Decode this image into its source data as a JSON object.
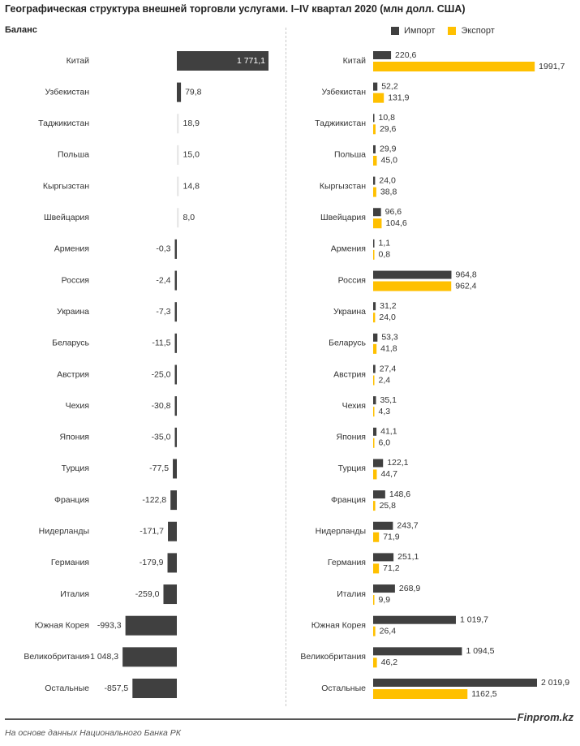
{
  "header": {
    "title": "Географическая структура внешней торговли услугами. I–IV квартал 2020  (млн долл. США)",
    "balance_label": "Баланс"
  },
  "legend": {
    "import_label": "Импорт",
    "export_label": "Экспорт"
  },
  "colors": {
    "import": "#404040",
    "export": "#FFC000",
    "balance": "#404040",
    "balance_small": "#e8e8e8"
  },
  "footer": {
    "source": "На основе данных  Национального  Банка РК",
    "brand": "Finprom.kz"
  },
  "chart_data": [
    {
      "type": "bar",
      "orientation": "horizontal",
      "title": "Баланс",
      "categories": [
        "Китай",
        "Узбекистан",
        "Таджикистан",
        "Польша",
        "Кыргызстан",
        "Швейцария",
        "Армения",
        "Россия",
        "Украина",
        "Беларусь",
        "Австрия",
        "Чехия",
        "Япония",
        "Турция",
        "Франция",
        "Нидерланды",
        "Германия",
        "Италия",
        "Южная Корея",
        "Великобритания",
        "Остальные"
      ],
      "values": [
        1771.1,
        79.8,
        18.9,
        15.0,
        14.8,
        8.0,
        -0.3,
        -2.4,
        -7.3,
        -11.5,
        -25.0,
        -30.8,
        -35.0,
        -77.5,
        -122.8,
        -171.7,
        -179.9,
        -259.0,
        -993.3,
        -1048.3,
        -857.5
      ],
      "labels": [
        "1 771,1",
        "79,8",
        "18,9",
        "15,0",
        "14,8",
        "8,0",
        "-0,3",
        "-2,4",
        "-7,3",
        "-11,5",
        "-25,0",
        "-30,8",
        "-35,0",
        "-77,5",
        "-122,8",
        "-171,7",
        "-179,9",
        "-259,0",
        "-993,3",
        "-1 048,3",
        "-857,5"
      ]
    },
    {
      "type": "bar",
      "orientation": "horizontal",
      "categories": [
        "Китай",
        "Узбекистан",
        "Таджикистан",
        "Польша",
        "Кыргызстан",
        "Швейцария",
        "Армения",
        "Россия",
        "Украина",
        "Беларусь",
        "Австрия",
        "Чехия",
        "Япония",
        "Турция",
        "Франция",
        "Нидерланды",
        "Германия",
        "Италия",
        "Южная Корея",
        "Великобритания",
        "Остальные"
      ],
      "series": [
        {
          "name": "Импорт",
          "values": [
            220.6,
            52.2,
            10.8,
            29.9,
            24.0,
            96.6,
            1.1,
            964.8,
            31.2,
            53.3,
            27.4,
            35.1,
            41.1,
            122.1,
            148.6,
            243.7,
            251.1,
            268.9,
            1019.7,
            1094.5,
            2019.9
          ],
          "labels": [
            "220,6",
            "52,2",
            "10,8",
            "29,9",
            "24,0",
            "96,6",
            "1,1",
            "964,8",
            "31,2",
            "53,3",
            "27,4",
            "35,1",
            "41,1",
            "122,1",
            "148,6",
            "243,7",
            "251,1",
            "268,9",
            "1 019,7",
            "1 094,5",
            "2 019,9"
          ]
        },
        {
          "name": "Экспорт",
          "values": [
            1991.7,
            131.9,
            29.6,
            45.0,
            38.8,
            104.6,
            0.8,
            962.4,
            24.0,
            41.8,
            2.4,
            4.3,
            6.0,
            44.7,
            25.8,
            71.9,
            71.2,
            9.9,
            26.4,
            46.2,
            1162.5
          ],
          "labels": [
            "1991,7",
            "131,9",
            "29,6",
            "45,0",
            "38,8",
            "104,6",
            "0,8",
            "962,4",
            "24,0",
            "41,8",
            "2,4",
            "4,3",
            "6,0",
            "44,7",
            "25,8",
            "71,9",
            "71,2",
            "9,9",
            "26,4",
            "46,2",
            "1162,5"
          ]
        }
      ]
    }
  ]
}
